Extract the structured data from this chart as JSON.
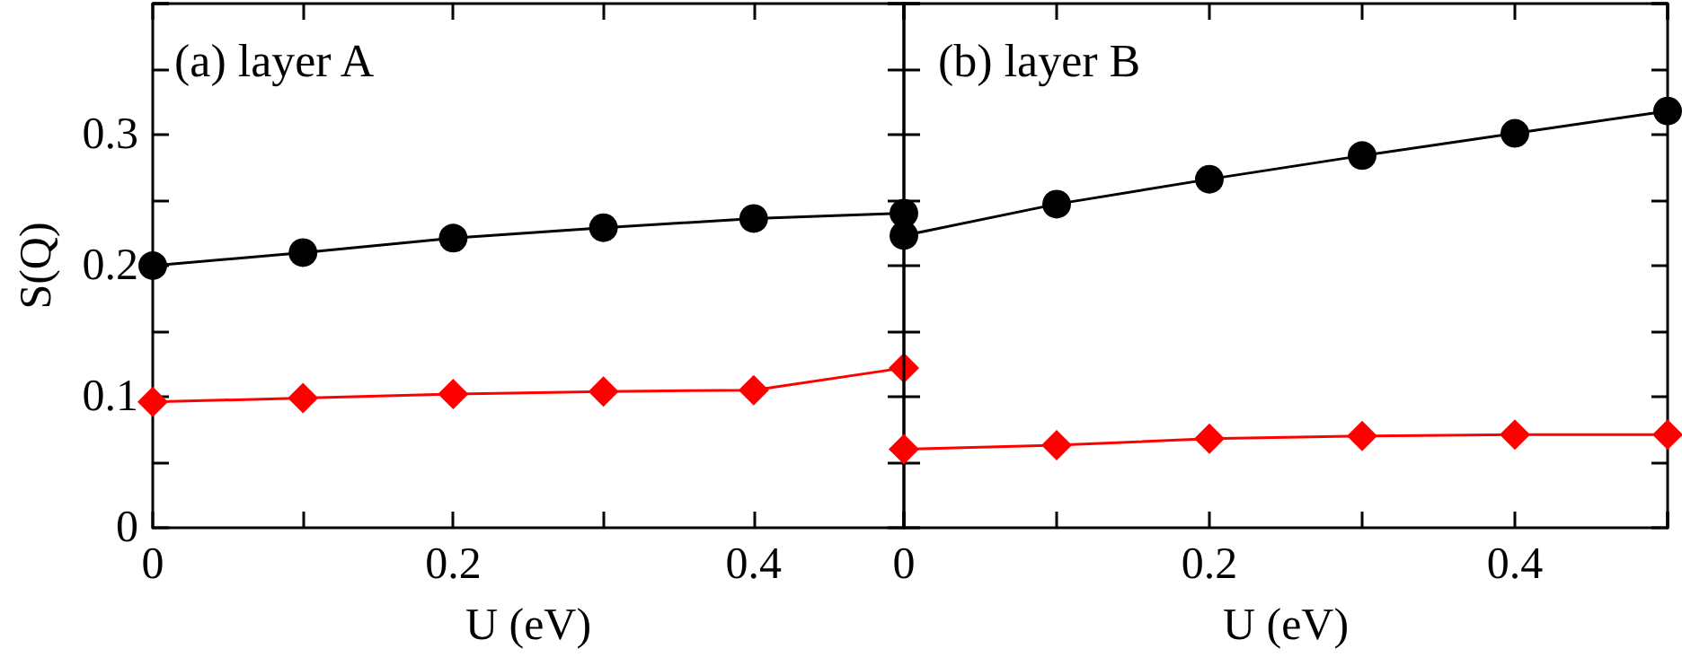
{
  "chart_data": [
    {
      "type": "line",
      "title": "(a) layer A",
      "xlabel": "U (eV)",
      "ylabel": "S(Q)",
      "x": [
        0,
        0.1,
        0.2,
        0.3,
        0.4,
        0.5
      ],
      "series": [
        {
          "color": "#000000",
          "marker": "circle",
          "values": [
            0.2,
            0.21,
            0.221,
            0.229,
            0.236,
            0.24
          ]
        },
        {
          "color": "#ff0000",
          "marker": "diamond",
          "values": [
            0.096,
            0.099,
            0.102,
            0.104,
            0.105,
            0.122
          ]
        }
      ],
      "xlim": [
        0,
        0.5
      ],
      "xticks": [
        0,
        {
          "value": 0.1,
          "label": null
        },
        0.2,
        {
          "value": 0.3,
          "label": null
        },
        0.4
      ],
      "ylim": [
        0,
        0.4
      ],
      "yticks": [
        0,
        {
          "value": 0.05,
          "label": null
        },
        0.1,
        {
          "value": 0.15,
          "label": null
        },
        0.2,
        {
          "value": 0.25,
          "label": null
        },
        0.3,
        {
          "value": 0.35,
          "label": null
        }
      ],
      "grid": false,
      "line_style": "solid"
    },
    {
      "type": "line",
      "title": "(b) layer B",
      "xlabel": "U (eV)",
      "x": [
        0,
        0.1,
        0.2,
        0.3,
        0.4,
        0.5
      ],
      "series": [
        {
          "color": "#000000",
          "marker": "circle",
          "values": [
            0.223,
            0.247,
            0.266,
            0.284,
            0.301,
            0.318
          ]
        },
        {
          "color": "#ff0000",
          "marker": "diamond",
          "values": [
            0.06,
            0.063,
            0.068,
            0.07,
            0.071,
            0.071
          ]
        }
      ],
      "xlim": [
        0,
        0.5
      ],
      "xticks": [
        0,
        {
          "value": 0.1,
          "label": null
        },
        0.2,
        {
          "value": 0.3,
          "label": null
        },
        0.4,
        {
          "value": 0.5,
          "label": null
        }
      ],
      "ylim": [
        0,
        0.4
      ],
      "yticks": [
        0,
        {
          "value": 0.05,
          "label": null
        },
        0.1,
        {
          "value": 0.15,
          "label": null
        },
        0.2,
        {
          "value": 0.25,
          "label": null
        },
        0.3,
        {
          "value": 0.35,
          "label": null
        }
      ],
      "tick_labels": "x",
      "grid": false,
      "line_style": "solid"
    }
  ]
}
